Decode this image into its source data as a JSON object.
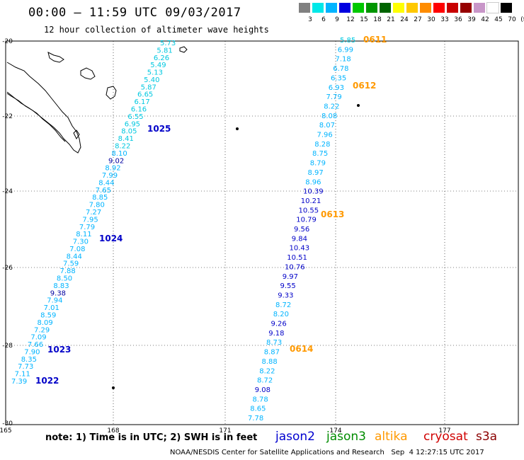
{
  "title": "00:00 – 11:59 UTC 09/03/2017",
  "subtitle": "12 hour collection of altimeter wave heights",
  "legend": {
    "colors": [
      "#808080",
      "#00e8e8",
      "#00b4ff",
      "#0000e0",
      "#00c800",
      "#009600",
      "#006400",
      "#ffff00",
      "#ffc800",
      "#ff8c00",
      "#ff0000",
      "#c80000",
      "#960000",
      "#c896c8",
      "#ffffff",
      "#000000"
    ],
    "labels": [
      "3",
      "6",
      "9",
      "12",
      "15",
      "18",
      "21",
      "24",
      "27",
      "30",
      "33",
      "36",
      "39",
      "42",
      "45",
      "70",
      "(ft)"
    ]
  },
  "axes": {
    "x_ticks": [
      "165",
      "168",
      "171",
      "174",
      "177"
    ],
    "y_ticks": [
      "-20",
      "-22",
      "-24",
      "-26",
      "-28",
      "-30"
    ]
  },
  "note": "note: 1) Time is in UTC; 2) SWH is in feet",
  "missions": {
    "jason2": {
      "label": "jason2",
      "color": "#0000d0"
    },
    "jason3": {
      "label": "jason3",
      "color": "#008c00"
    },
    "altika": {
      "label": "altika",
      "color": "#ff9900"
    },
    "cryosat": {
      "label": "cryosat",
      "color": "#d00000"
    },
    "s3a": {
      "label": "s3a",
      "color": "#8b0000"
    }
  },
  "credit": "NOAA/NESDIS Center for Satellite Applications and Research   Sep  4 12:27:15 UTC 2017",
  "track_west": {
    "values": [
      "5.73",
      "5.81",
      "6.26",
      "5.49",
      "5.13",
      "5.40",
      "5.87",
      "6.65",
      "6.17",
      "6.16",
      "6.55",
      "6.95",
      "8.05",
      "8.41",
      "8.22",
      "8.10",
      "9.02",
      "8.92",
      "7.99",
      "8.44",
      "7.65",
      "8.85",
      "7.80",
      "7.27",
      "7.95",
      "7.79",
      "8.11",
      "7.30",
      "7.08",
      "8.44",
      "7.59",
      "7.88",
      "8.50",
      "8.83",
      "9.38",
      "7.94",
      "7.01",
      "8.59",
      "8.09",
      "7.29",
      "7.09",
      "7.66",
      "7.90",
      "8.35",
      "7.73",
      "7.11",
      "7.39"
    ],
    "colors": [
      "#00c8e0",
      "#00c8e0",
      "#00c8e0",
      "#00c8e0",
      "#00c8e0",
      "#00c8e0",
      "#00c8e0",
      "#00c8e0",
      "#00c8e0",
      "#00c8e0",
      "#00c8e0",
      "#00c8e0",
      "#00c8e0",
      "#00c8e0",
      "#00c8e0",
      "#00b4ff",
      "#0000a0",
      "#00b4ff",
      "#00b4ff",
      "#00b4ff",
      "#00b4ff",
      "#00b4ff",
      "#00b4ff",
      "#00b4ff",
      "#00b4ff",
      "#00b4ff",
      "#00b4ff",
      "#00b4ff",
      "#00b4ff",
      "#00b4ff",
      "#00b4ff",
      "#00b4ff",
      "#00b4ff",
      "#00b4ff",
      "#0000a0",
      "#00b4ff",
      "#00b4ff",
      "#00b4ff",
      "#00b4ff",
      "#00b4ff",
      "#00b4ff",
      "#00b4ff",
      "#00b4ff",
      "#00b4ff",
      "#00b4ff",
      "#00b4ff",
      "#00b4ff"
    ],
    "time_labels": [
      "1025",
      "1024",
      "1023",
      "1022"
    ],
    "time_color": "#0000c8"
  },
  "track_east": {
    "values": [
      "5.85",
      "6.99",
      "7.18",
      "6.78",
      "6.35",
      "6.93",
      "7.79",
      "8.22",
      "8.08",
      "8.07",
      "7.96",
      "8.28",
      "8.75",
      "8.79",
      "8.97",
      "8.96",
      "10.39",
      "10.21",
      "10.55",
      "10.79",
      "9.56",
      "9.84",
      "10.43",
      "10.51",
      "10.76",
      "9.97",
      "9.55",
      "9.33",
      "8.72",
      "8.20",
      "9.26",
      "9.18",
      "8.73",
      "8.87",
      "8.88",
      "8.22",
      "8.72",
      "9.08",
      "8.78",
      "8.65",
      "7.78"
    ],
    "colors": [
      "#00c8e0",
      "#00b4ff",
      "#00b4ff",
      "#00b4ff",
      "#00b4ff",
      "#00b4ff",
      "#00b4ff",
      "#00b4ff",
      "#00b4ff",
      "#00b4ff",
      "#00b4ff",
      "#00b4ff",
      "#00b4ff",
      "#00b4ff",
      "#00b4ff",
      "#00b4ff",
      "#0000c8",
      "#0000c8",
      "#0000c8",
      "#0000c8",
      "#0000c8",
      "#0000c8",
      "#0000c8",
      "#0000c8",
      "#0000c8",
      "#0000c8",
      "#0000c8",
      "#0000c8",
      "#00b4ff",
      "#00b4ff",
      "#0000c8",
      "#0000c8",
      "#00b4ff",
      "#00b4ff",
      "#00b4ff",
      "#00b4ff",
      "#00b4ff",
      "#0000c8",
      "#00b4ff",
      "#00b4ff",
      "#00b4ff"
    ],
    "time_labels": [
      "0611",
      "0612",
      "0613",
      "0614"
    ],
    "time_color": "#ff9900"
  }
}
